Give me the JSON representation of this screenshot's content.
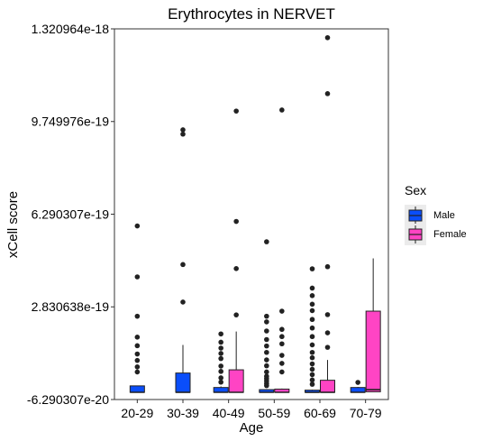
{
  "chart_data": {
    "type": "boxplot",
    "title": "Erythrocytes in NERVET",
    "xlabel": "Age",
    "ylabel": "xCell score",
    "categories": [
      "20-29",
      "30-39",
      "40-49",
      "50-59",
      "60-69",
      "70-79"
    ],
    "ylim": [
      -6.290307e-20,
      1.320964e-18
    ],
    "yticks": [
      -6.290307e-20,
      2.830638e-19,
      6.290307e-19,
      9.749976e-19,
      1.320964e-18
    ],
    "ytick_labels": [
      "-6.290307e-20",
      "2.830638e-19",
      "6.290307e-19",
      "9.749976e-19",
      "1.320964e-18"
    ],
    "grid": false,
    "legend": {
      "title": "Sex",
      "position": "right"
    },
    "series": [
      {
        "name": "Male",
        "color": "#0a4efa",
        "boxes": [
          {
            "category": "20-29",
            "whisker_low": -3.6e-20,
            "q1": -3.6e-20,
            "median": -3.6e-20,
            "q3": -1.2e-20,
            "whisker_high": -1.2e-20,
            "outliers": [
              5.85e-19,
              3.95e-19,
              2.48e-19,
              1.7e-19,
              1.38e-19,
              1.07e-19,
              8.3e-20,
              5.9e-20,
              4e-20
            ]
          },
          {
            "category": "30-39",
            "whisker_low": -3.6e-20,
            "q1": -3.6e-20,
            "median": -3.6e-20,
            "q3": 3.6e-20,
            "whisker_high": 1.41e-19,
            "outliers": [
              9.44e-19,
              9.28e-19,
              4.41e-19,
              3.01e-19
            ]
          },
          {
            "category": "40-49",
            "whisker_low": -3.6e-20,
            "q1": -3.6e-20,
            "median": -3.6e-20,
            "q3": -1.8e-20,
            "whisker_high": -1.4e-20,
            "outliers": [
              1.82e-19,
              1.51e-19,
              1.29e-19,
              1.09e-19,
              9e-20,
              6.2e-20,
              4.2e-20,
              1.8e-20,
              2e-21
            ]
          },
          {
            "category": "50-59",
            "whisker_low": -3.6e-20,
            "q1": -3.6e-20,
            "median": -3.6e-20,
            "q3": -2.6e-20,
            "whisker_high": -2.4e-20,
            "outliers": [
              5.26e-19,
              2.48e-19,
              2.27e-19,
              1.93e-19,
              1.61e-19,
              1.37e-19,
              1.13e-19,
              8.5e-20,
              6.3e-20,
              4e-20,
              2.4e-20,
              1.5e-20,
              6e-21,
              -3e-21,
              -1.1e-20
            ]
          },
          {
            "category": "60-69",
            "whisker_low": -3.6e-20,
            "q1": -3.6e-20,
            "median": -3.6e-20,
            "q3": -2.8e-20,
            "whisker_high": -2.6e-20,
            "outliers": [
              4.25e-19,
              3.53e-19,
              3.25e-19,
              2.93e-19,
              2.69e-19,
              2.36e-19,
              2.04e-19,
              1.72e-19,
              1.41e-19,
              1.13e-19,
              9.3e-20,
              7e-20,
              5e-20,
              3e-20,
              1e-20,
              -6e-21
            ]
          },
          {
            "category": "70-79",
            "whisker_low": -3.6e-20,
            "q1": -3.6e-20,
            "median": -3.6e-20,
            "q3": -1.8e-20,
            "whisker_high": -1.6e-20,
            "outliers": [
              1e-21
            ]
          }
        ]
      },
      {
        "name": "Female",
        "color": "#ff44c4",
        "boxes": [
          {
            "category": "40-49",
            "whisker_low": -3.6e-20,
            "q1": -3.6e-20,
            "median": -3.6e-20,
            "q3": 4.8e-20,
            "whisker_high": 1.91e-19,
            "outliers": [
              1.014e-18,
              6.02e-19,
              4.26e-19,
              2.53e-19
            ]
          },
          {
            "category": "50-59",
            "whisker_low": -3.6e-20,
            "q1": -3.6e-20,
            "median": -3.6e-20,
            "q3": -2.4e-20,
            "whisker_high": -2.2e-20,
            "outliers": [
              1.018e-18,
              2.67e-19,
              1.99e-19,
              1.72e-19,
              1.45e-19,
              1.02e-19,
              7.2e-20,
              4e-20
            ]
          },
          {
            "category": "60-69",
            "whisker_low": -3.6e-20,
            "q1": -3.6e-20,
            "median": -3.6e-20,
            "q3": 9e-21,
            "whisker_high": 8.5e-20,
            "outliers": [
              1.288e-18,
              1.079e-18,
              4.33e-19,
              2.54e-19,
              1.86e-19,
              1.32e-19
            ]
          },
          {
            "category": "70-79",
            "whisker_low": -3.4e-20,
            "q1": -3.4e-20,
            "median": -2.6e-20,
            "q3": 2.67e-19,
            "whisker_high": 4.64e-19,
            "outliers": []
          }
        ]
      }
    ]
  }
}
